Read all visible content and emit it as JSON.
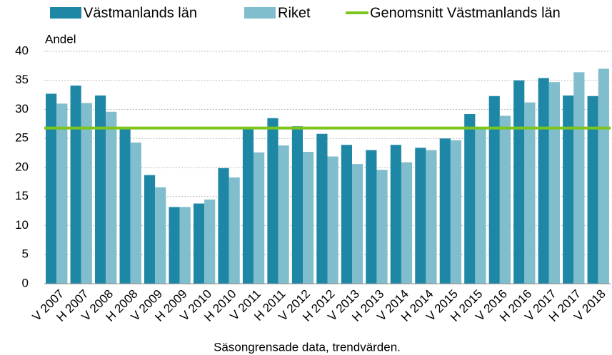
{
  "chart_data": {
    "type": "bar",
    "y_axis_label": "Andel",
    "x_axis_label": "Säsongrensade data, trendvärden.",
    "categories": [
      "V 2007",
      "H 2007",
      "V 2008",
      "H 2008",
      "V 2009",
      "H 2009",
      "V 2010",
      "H 2010",
      "V 2011",
      "H 2011",
      "V 2012",
      "H 2012",
      "V 2013",
      "H 2013",
      "V 2014",
      "H 2014",
      "V 2015",
      "H 2015",
      "V 2016",
      "H 2016",
      "V 2017",
      "H 2017",
      "V 2018"
    ],
    "series": [
      {
        "name": "Västmanlands län",
        "color": "#1d87a5",
        "values": [
          32.7,
          34.1,
          32.4,
          26.7,
          18.7,
          13.2,
          13.8,
          19.9,
          26.6,
          28.5,
          27.1,
          25.8,
          23.9,
          23.0,
          23.9,
          23.4,
          25.0,
          29.2,
          32.3,
          35.0,
          35.4,
          32.4,
          32.3
        ]
      },
      {
        "name": "Riket",
        "color": "#80bdcd",
        "values": [
          31.0,
          31.1,
          29.6,
          24.3,
          16.6,
          13.2,
          14.5,
          18.3,
          22.6,
          23.8,
          22.7,
          21.9,
          20.6,
          19.6,
          20.9,
          23.0,
          24.7,
          26.6,
          28.9,
          31.2,
          34.7,
          36.4,
          37.0
        ]
      }
    ],
    "reference_line": {
      "name": "Genomsnitt Västmanlands län",
      "color": "#7dc41f",
      "value": 26.8
    },
    "ylim": [
      0,
      40
    ],
    "yticks": [
      0,
      5,
      10,
      15,
      20,
      25,
      30,
      35,
      40
    ],
    "grid": true
  }
}
